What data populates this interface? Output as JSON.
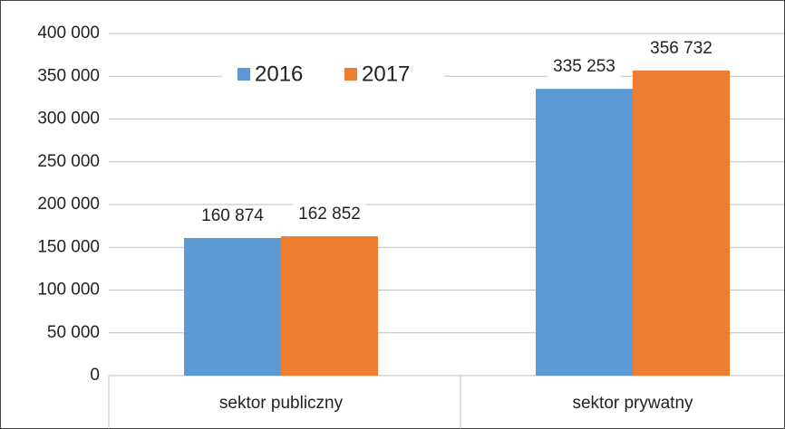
{
  "chart_data": {
    "type": "bar",
    "categories": [
      "sektor publiczny",
      "sektor prywatny"
    ],
    "series": [
      {
        "name": "2016",
        "color": "#5b9bd5",
        "values": [
          160874,
          335253
        ],
        "value_labels": [
          "160 874",
          "335 253"
        ]
      },
      {
        "name": "2017",
        "color": "#ed7d31",
        "values": [
          162852,
          356732
        ],
        "value_labels": [
          "162 852",
          "356 732"
        ]
      }
    ],
    "ylim": [
      0,
      400000
    ],
    "yticks": [
      0,
      {
        "value": 50000,
        "label": "50 000"
      },
      {
        "value": 100000,
        "label": "100 000"
      },
      {
        "value": 150000,
        "label": "150 000"
      },
      {
        "value": 200000,
        "label": "200 000"
      },
      {
        "value": 250000,
        "label": "250 000"
      },
      {
        "value": 300000,
        "label": "300 000"
      },
      {
        "value": 350000,
        "label": "350 000"
      },
      {
        "value": 400000,
        "label": "400 000"
      }
    ],
    "grid": true,
    "legend": "top"
  }
}
